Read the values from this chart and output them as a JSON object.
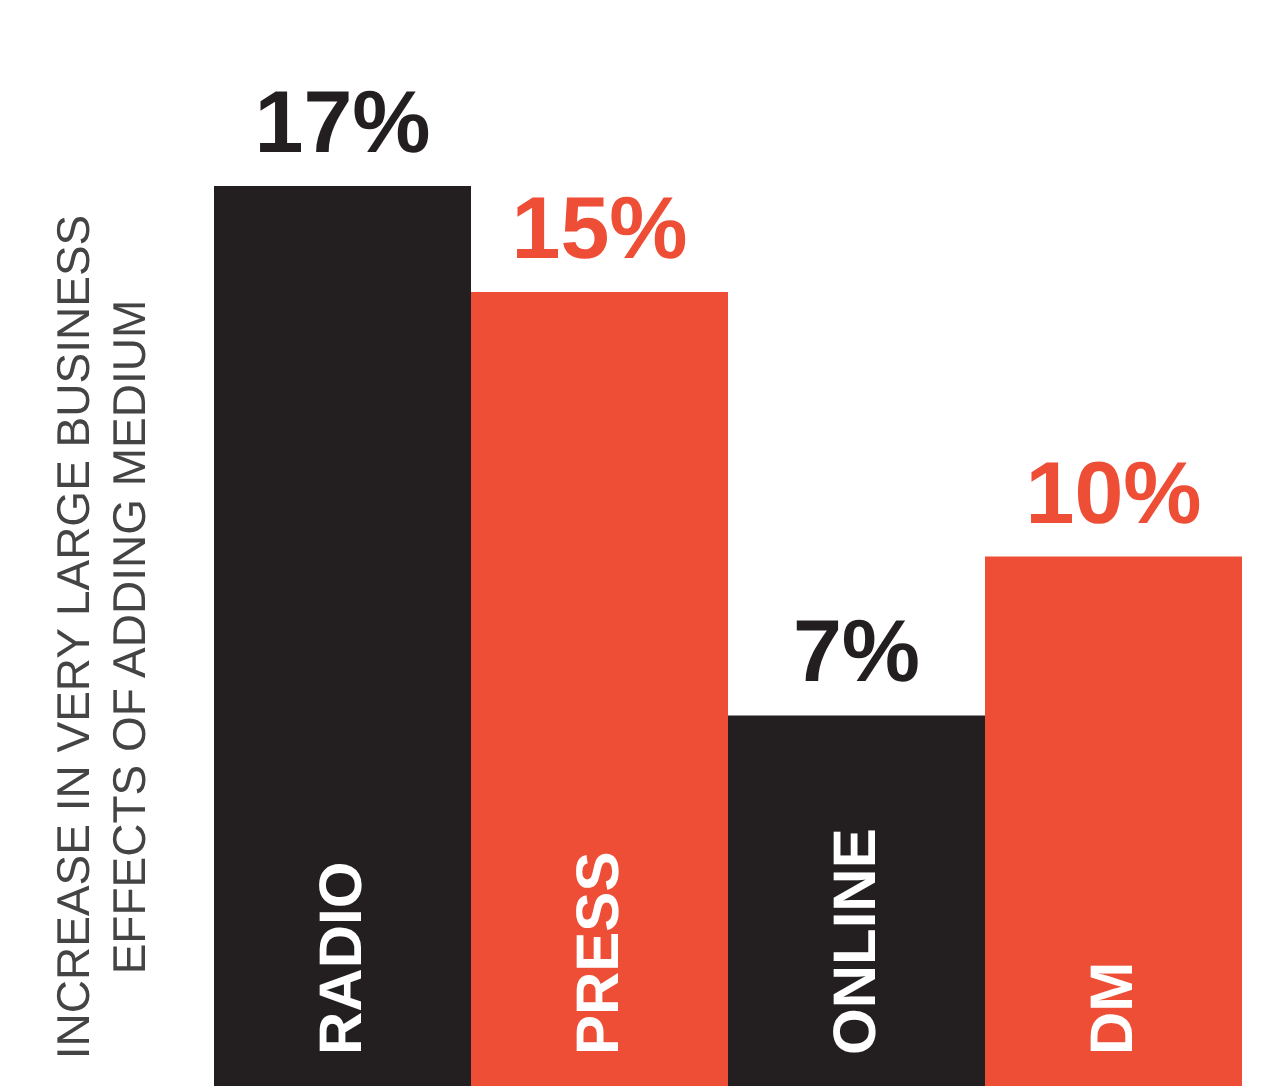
{
  "chart_data": {
    "type": "bar",
    "ylabel": "INCREASE IN VERY LARGE BUSINESS\nEFFECTS OF ADDING MEDIUM",
    "categories": [
      "RADIO",
      "PRESS",
      "ONLINE",
      "DM"
    ],
    "values": [
      17,
      15,
      7,
      10
    ],
    "colors": [
      "#231f20",
      "#ee4d36",
      "#231f20",
      "#ee4d36"
    ],
    "value_labels": [
      "17%",
      "15%",
      "7%",
      "10%"
    ],
    "ylim": [
      0,
      17
    ]
  }
}
